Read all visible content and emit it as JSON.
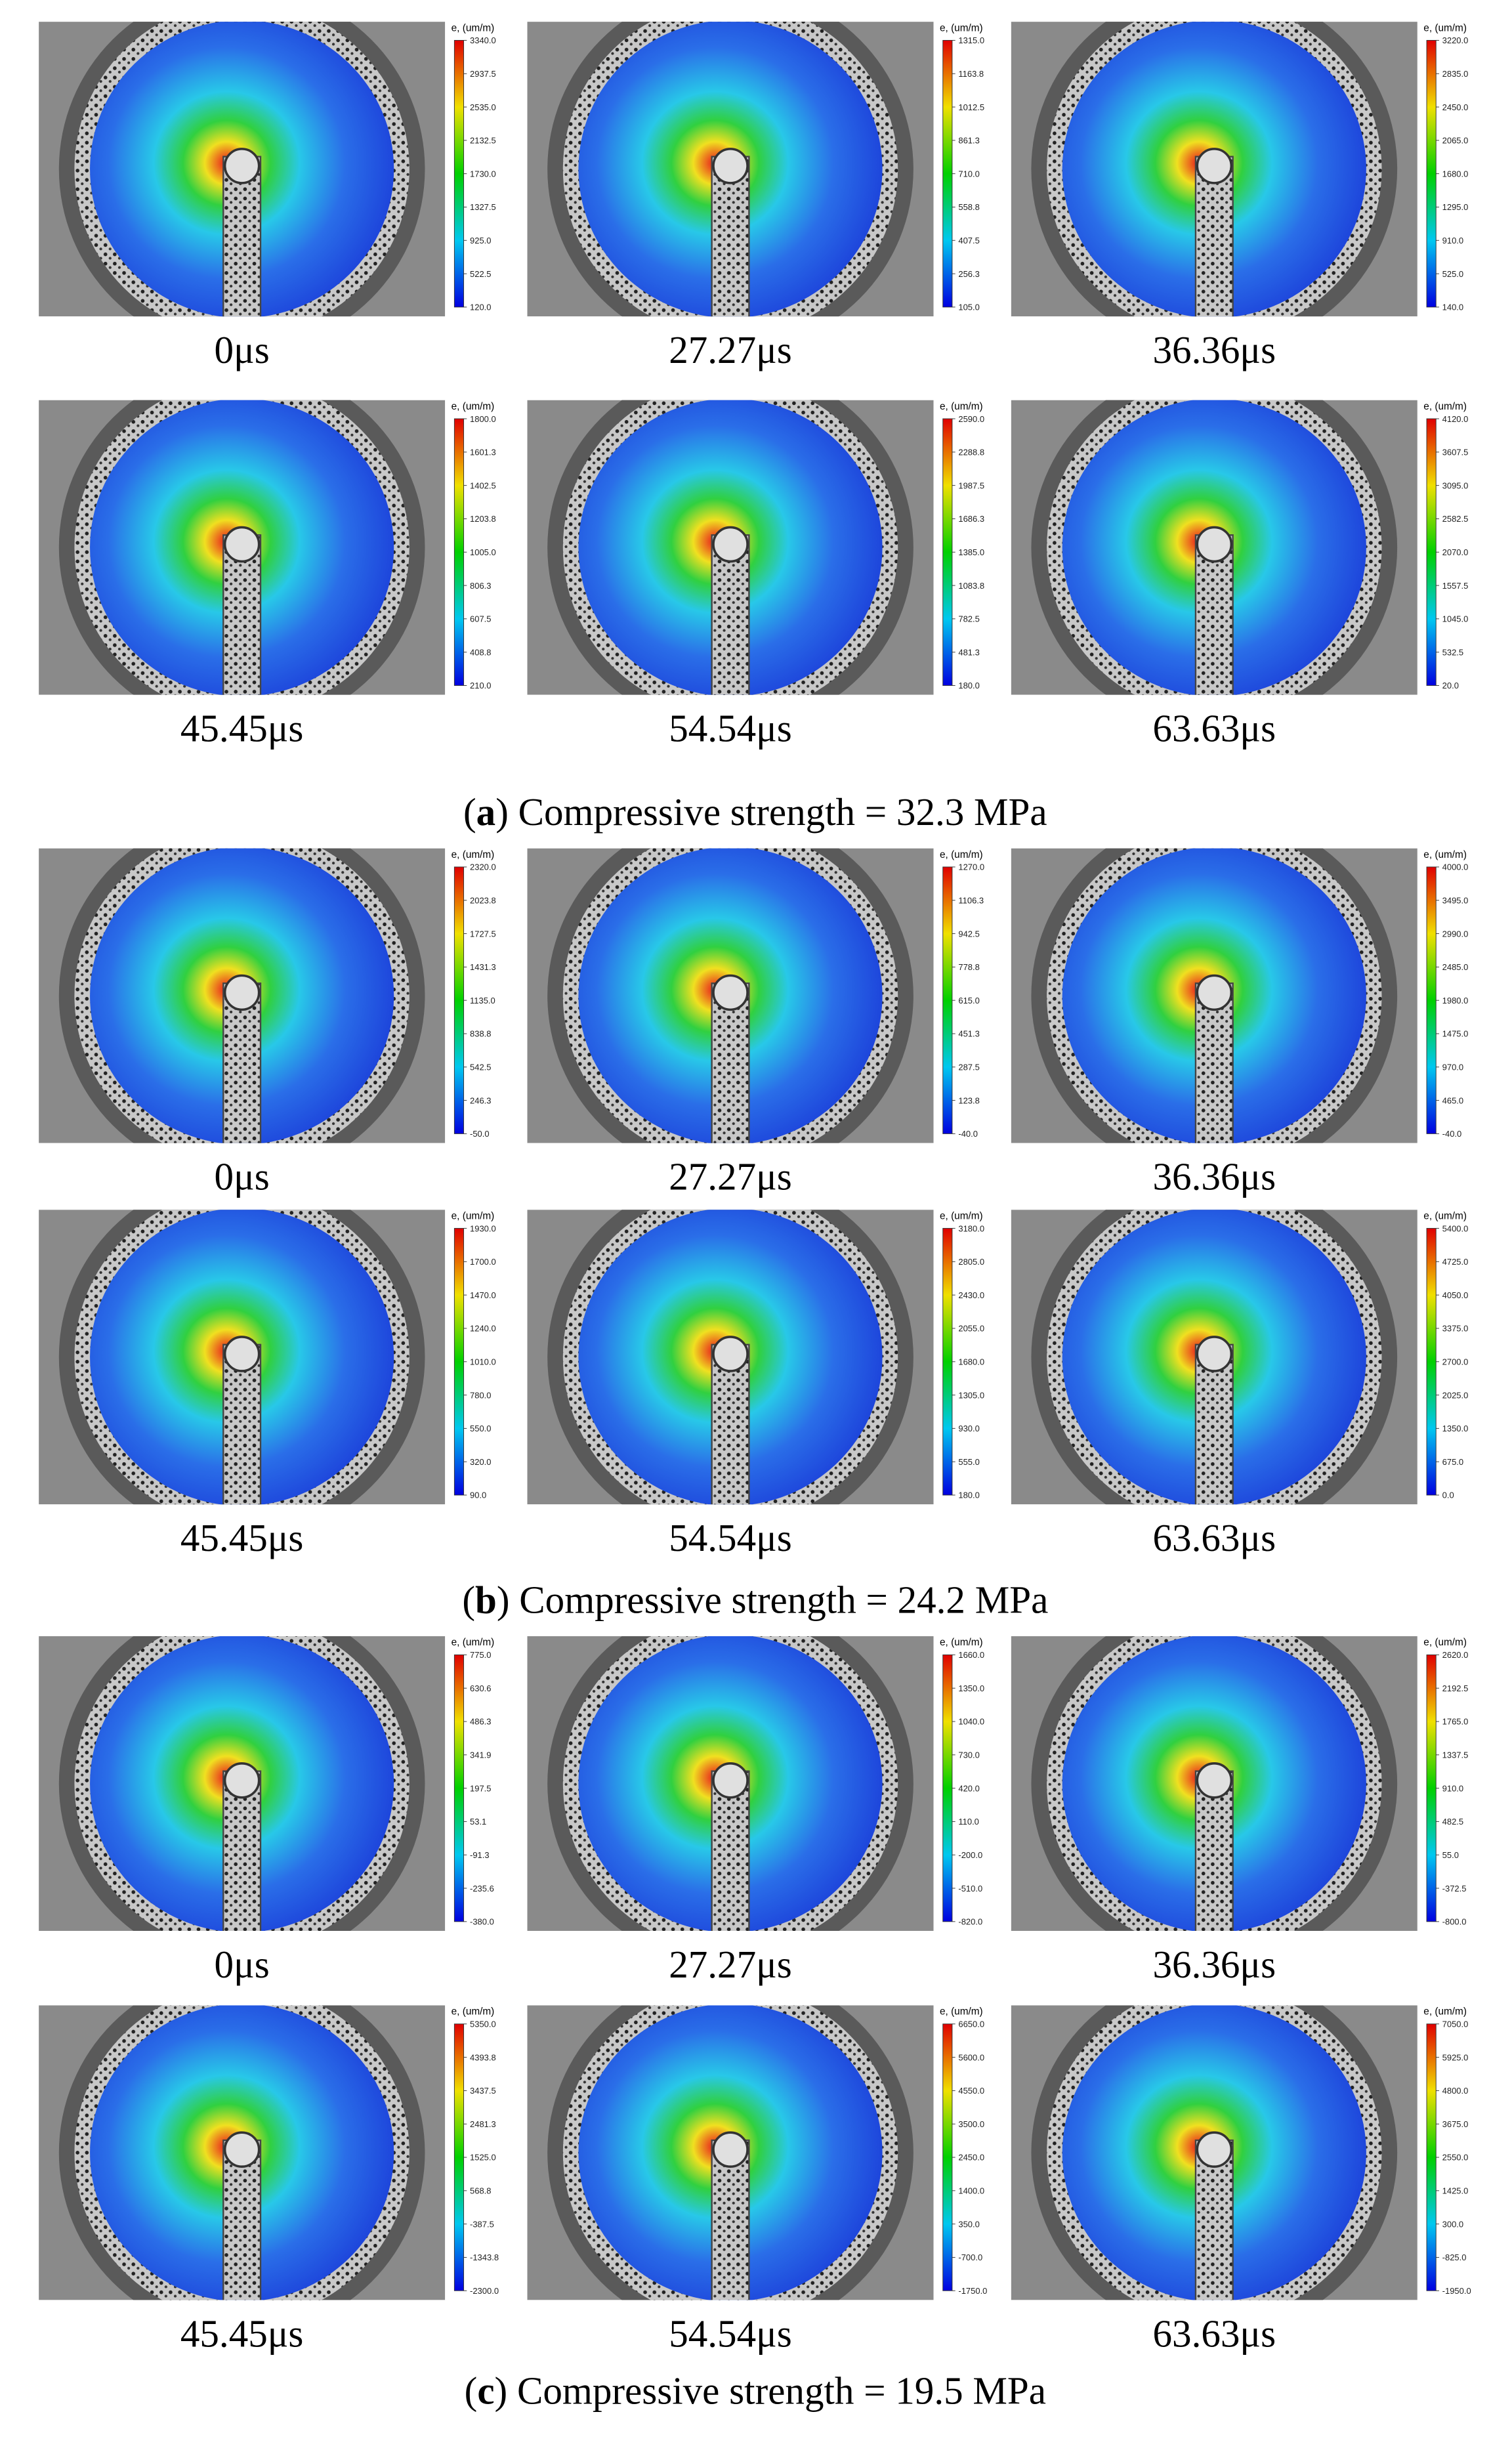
{
  "panels": [
    {
      "caption": [
        "(",
        "a",
        ") Compressive strength = 32.3 MPa"
      ],
      "frames": [
        {
          "time": "0μs",
          "colorbar_title": "e, (um/m)",
          "ticks": [
            "3340.0",
            "2937.5",
            "2535.0",
            "2132.5",
            "1730.0",
            "1327.5",
            "925.0",
            "522.5",
            "120.0"
          ]
        },
        {
          "time": "27.27μs",
          "colorbar_title": "e, (um/m)",
          "ticks": [
            "1315.0",
            "1163.8",
            "1012.5",
            "861.3",
            "710.0",
            "558.8",
            "407.5",
            "256.3",
            "105.0"
          ]
        },
        {
          "time": "36.36μs",
          "colorbar_title": "e, (um/m)",
          "ticks": [
            "3220.0",
            "2835.0",
            "2450.0",
            "2065.0",
            "1680.0",
            "1295.0",
            "910.0",
            "525.0",
            "140.0"
          ]
        },
        {
          "time": "45.45μs",
          "colorbar_title": "e, (um/m)",
          "ticks": [
            "1800.0",
            "1601.3",
            "1402.5",
            "1203.8",
            "1005.0",
            "806.3",
            "607.5",
            "408.8",
            "210.0"
          ]
        },
        {
          "time": "54.54μs",
          "colorbar_title": "e, (um/m)",
          "ticks": [
            "2590.0",
            "2288.8",
            "1987.5",
            "1686.3",
            "1385.0",
            "1083.8",
            "782.5",
            "481.3",
            "180.0"
          ]
        },
        {
          "time": "63.63μs",
          "colorbar_title": "e, (um/m)",
          "ticks": [
            "4120.0",
            "3607.5",
            "3095.0",
            "2582.5",
            "2070.0",
            "1557.5",
            "1045.0",
            "532.5",
            "20.0"
          ]
        }
      ]
    },
    {
      "caption": [
        "(",
        "b",
        ") Compressive strength = 24.2 MPa"
      ],
      "frames": [
        {
          "time": "0μs",
          "colorbar_title": "e, (um/m)",
          "ticks": [
            "2320.0",
            "2023.8",
            "1727.5",
            "1431.3",
            "1135.0",
            "838.8",
            "542.5",
            "246.3",
            "-50.0"
          ]
        },
        {
          "time": "27.27μs",
          "colorbar_title": "e, (um/m)",
          "ticks": [
            "1270.0",
            "1106.3",
            "942.5",
            "778.8",
            "615.0",
            "451.3",
            "287.5",
            "123.8",
            "-40.0"
          ]
        },
        {
          "time": "36.36μs",
          "colorbar_title": "e, (um/m)",
          "ticks": [
            "4000.0",
            "3495.0",
            "2990.0",
            "2485.0",
            "1980.0",
            "1475.0",
            "970.0",
            "465.0",
            "-40.0"
          ]
        },
        {
          "time": "45.45μs",
          "colorbar_title": "e, (um/m)",
          "ticks": [
            "1930.0",
            "1700.0",
            "1470.0",
            "1240.0",
            "1010.0",
            "780.0",
            "550.0",
            "320.0",
            "90.0"
          ]
        },
        {
          "time": "54.54μs",
          "colorbar_title": "e, (um/m)",
          "ticks": [
            "3180.0",
            "2805.0",
            "2430.0",
            "2055.0",
            "1680.0",
            "1305.0",
            "930.0",
            "555.0",
            "180.0"
          ]
        },
        {
          "time": "63.63μs",
          "colorbar_title": "e, (um/m)",
          "ticks": [
            "5400.0",
            "4725.0",
            "4050.0",
            "3375.0",
            "2700.0",
            "2025.0",
            "1350.0",
            "675.0",
            "0.0"
          ]
        }
      ]
    },
    {
      "caption": [
        "(",
        "c",
        ") Compressive strength = 19.5 MPa"
      ],
      "frames": [
        {
          "time": "0μs",
          "colorbar_title": "e, (um/m)",
          "ticks": [
            "775.0",
            "630.6",
            "486.3",
            "341.9",
            "197.5",
            "53.1",
            "-91.3",
            "-235.6",
            "-380.0"
          ]
        },
        {
          "time": "27.27μs",
          "colorbar_title": "e, (um/m)",
          "ticks": [
            "1660.0",
            "1350.0",
            "1040.0",
            "730.0",
            "420.0",
            "110.0",
            "-200.0",
            "-510.0",
            "-820.0"
          ]
        },
        {
          "time": "36.36μs",
          "colorbar_title": "e, (um/m)",
          "ticks": [
            "2620.0",
            "2192.5",
            "1765.0",
            "1337.5",
            "910.0",
            "482.5",
            "55.0",
            "-372.5",
            "-800.0"
          ]
        },
        {
          "time": "45.45μs",
          "colorbar_title": "e, (um/m)",
          "ticks": [
            "5350.0",
            "4393.8",
            "3437.5",
            "2481.3",
            "1525.0",
            "568.8",
            "-387.5",
            "-1343.8",
            "-2300.0"
          ]
        },
        {
          "time": "54.54μs",
          "colorbar_title": "e, (um/m)",
          "ticks": [
            "6650.0",
            "5600.0",
            "4550.0",
            "3500.0",
            "2450.0",
            "1400.0",
            "350.0",
            "-700.0",
            "-1750.0"
          ]
        },
        {
          "time": "63.63μs",
          "colorbar_title": "e, (um/m)",
          "ticks": [
            "7050.0",
            "5925.0",
            "4800.0",
            "3675.0",
            "2550.0",
            "1425.0",
            "300.0",
            "-825.0",
            "-1950.0"
          ]
        }
      ]
    }
  ]
}
